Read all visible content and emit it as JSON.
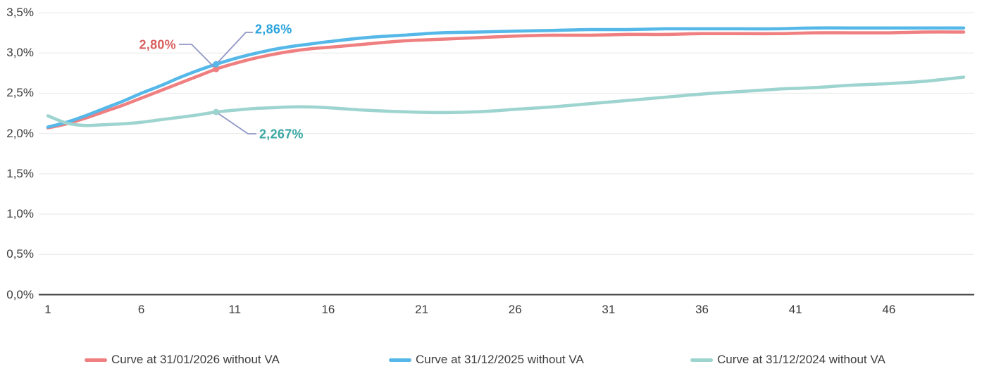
{
  "chart_data": {
    "type": "line",
    "title": "",
    "xlabel": "",
    "ylabel": "",
    "x_range": [
      1,
      50
    ],
    "y_range": [
      0,
      3.5
    ],
    "grid": "horizontal",
    "legend_position": "bottom",
    "x_ticks": [
      1,
      6,
      11,
      16,
      21,
      26,
      31,
      36,
      41,
      46
    ],
    "x_tick_labels": [
      "1",
      "6",
      "11",
      "16",
      "21",
      "26",
      "31",
      "36",
      "41",
      "46"
    ],
    "y_ticks": [
      3.5,
      3.0,
      2.5,
      2.0,
      1.5,
      1.0,
      0.5,
      0.0
    ],
    "y_tick_labels": [
      "3,5%",
      "3,0%",
      "2,5%",
      "2,0%",
      "1,5%",
      "1,0%",
      "0,5%",
      "0,0%"
    ],
    "colors": {
      "grid": "#e8e8e8",
      "axis": "#3a3a3a",
      "tick_text": "#3c3c3c",
      "connector": "#9097c5",
      "background": "#ffffff"
    },
    "series": [
      {
        "name": "Curve at 31/01/2026 without VA",
        "color": "#ef7f80",
        "points": [
          [
            1,
            2.07
          ],
          [
            2,
            2.12
          ],
          [
            3,
            2.19
          ],
          [
            4,
            2.27
          ],
          [
            5,
            2.35
          ],
          [
            6,
            2.44
          ],
          [
            7,
            2.53
          ],
          [
            8,
            2.62
          ],
          [
            9,
            2.71
          ],
          [
            10,
            2.8
          ],
          [
            11,
            2.87
          ],
          [
            12,
            2.93
          ],
          [
            13,
            2.98
          ],
          [
            14,
            3.02
          ],
          [
            15,
            3.05
          ],
          [
            16,
            3.07
          ],
          [
            18,
            3.11
          ],
          [
            20,
            3.15
          ],
          [
            22,
            3.17
          ],
          [
            24,
            3.19
          ],
          [
            26,
            3.21
          ],
          [
            28,
            3.22
          ],
          [
            30,
            3.22
          ],
          [
            32,
            3.23
          ],
          [
            34,
            3.23
          ],
          [
            36,
            3.24
          ],
          [
            38,
            3.24
          ],
          [
            40,
            3.24
          ],
          [
            42,
            3.25
          ],
          [
            44,
            3.25
          ],
          [
            46,
            3.25
          ],
          [
            48,
            3.26
          ],
          [
            50,
            3.26
          ]
        ]
      },
      {
        "name": "Curve at 31/12/2025 without VA",
        "color": "#55b8e8",
        "points": [
          [
            1,
            2.08
          ],
          [
            2,
            2.14
          ],
          [
            3,
            2.22
          ],
          [
            4,
            2.31
          ],
          [
            5,
            2.4
          ],
          [
            6,
            2.5
          ],
          [
            7,
            2.59
          ],
          [
            8,
            2.69
          ],
          [
            9,
            2.78
          ],
          [
            10,
            2.86
          ],
          [
            11,
            2.93
          ],
          [
            12,
            2.99
          ],
          [
            13,
            3.04
          ],
          [
            14,
            3.08
          ],
          [
            15,
            3.11
          ],
          [
            16,
            3.14
          ],
          [
            18,
            3.19
          ],
          [
            20,
            3.22
          ],
          [
            22,
            3.25
          ],
          [
            24,
            3.26
          ],
          [
            26,
            3.27
          ],
          [
            28,
            3.28
          ],
          [
            30,
            3.29
          ],
          [
            32,
            3.29
          ],
          [
            34,
            3.3
          ],
          [
            36,
            3.3
          ],
          [
            38,
            3.3
          ],
          [
            40,
            3.3
          ],
          [
            42,
            3.31
          ],
          [
            44,
            3.31
          ],
          [
            46,
            3.31
          ],
          [
            48,
            3.31
          ],
          [
            50,
            3.31
          ]
        ]
      },
      {
        "name": "Curve at 31/12/2024 without VA",
        "color": "#9ed4cf",
        "points": [
          [
            1,
            2.22
          ],
          [
            2,
            2.13
          ],
          [
            3,
            2.1
          ],
          [
            4,
            2.11
          ],
          [
            5,
            2.12
          ],
          [
            6,
            2.14
          ],
          [
            7,
            2.17
          ],
          [
            8,
            2.2
          ],
          [
            9,
            2.23
          ],
          [
            10,
            2.267
          ],
          [
            11,
            2.29
          ],
          [
            12,
            2.31
          ],
          [
            13,
            2.32
          ],
          [
            14,
            2.33
          ],
          [
            15,
            2.33
          ],
          [
            16,
            2.32
          ],
          [
            18,
            2.29
          ],
          [
            20,
            2.27
          ],
          [
            22,
            2.26
          ],
          [
            24,
            2.27
          ],
          [
            26,
            2.3
          ],
          [
            28,
            2.33
          ],
          [
            30,
            2.37
          ],
          [
            32,
            2.41
          ],
          [
            34,
            2.45
          ],
          [
            36,
            2.49
          ],
          [
            38,
            2.52
          ],
          [
            40,
            2.55
          ],
          [
            42,
            2.57
          ],
          [
            44,
            2.6
          ],
          [
            46,
            2.62
          ],
          [
            48,
            2.65
          ],
          [
            50,
            2.7
          ]
        ]
      }
    ],
    "annotations": [
      {
        "series": "Curve at 31/01/2026 without VA",
        "x": 10,
        "value": 2.8,
        "label": "2,80%",
        "text_color": "#d95f5f"
      },
      {
        "series": "Curve at 31/12/2025 without VA",
        "x": 10,
        "value": 2.86,
        "label": "2,86%",
        "text_color": "#29a3dd"
      },
      {
        "series": "Curve at 31/12/2024 without VA",
        "x": 10,
        "value": 2.267,
        "label": "2,267%",
        "text_color": "#3aa7a3"
      }
    ]
  }
}
